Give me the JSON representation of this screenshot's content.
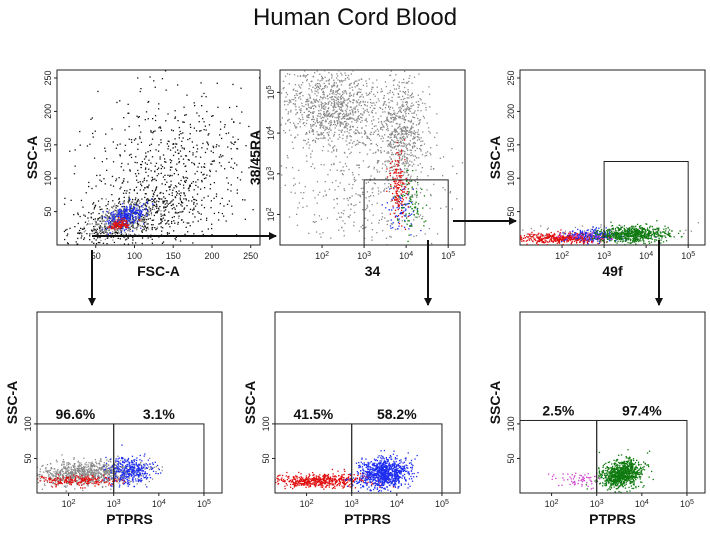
{
  "title": "Human Cord Blood",
  "colors": {
    "gray": "#8a8a8a",
    "black": "#111111",
    "red": "#e01010",
    "blue": "#1e2ef0",
    "green": "#0f7a0f",
    "magenta": "#d040d0",
    "arrow": "#111111"
  },
  "chart_data": [
    {
      "id": "p1",
      "type": "scatter",
      "xlabel": "FSC-A",
      "ylabel": "SSC-A",
      "xscale": "linear",
      "yscale": "linear",
      "xlim": [
        0,
        262
      ],
      "ylim": [
        0,
        262
      ],
      "xticks": [
        50,
        100,
        150,
        200,
        250
      ],
      "yticks": [
        50,
        100,
        150,
        200,
        250
      ],
      "xticklabels": [
        "50",
        "100",
        "150",
        "200",
        "250"
      ],
      "yticklabels": [
        "50",
        "100",
        "150",
        "200",
        "250"
      ],
      "series": [
        {
          "color": "black",
          "clusters": [
            {
              "cx": 95,
              "cy": 40,
              "sx": 40,
              "sy": 22,
              "n": 500,
              "rho": 0.55
            },
            {
              "cx": 140,
              "cy": 90,
              "sx": 55,
              "sy": 55,
              "n": 500,
              "rho": 0.2
            },
            {
              "cx": 160,
              "cy": 160,
              "sx": 60,
              "sy": 60,
              "n": 200,
              "rho": 0
            }
          ]
        },
        {
          "color": "gray",
          "clusters": [
            {
              "cx": 85,
              "cy": 38,
              "sx": 20,
              "sy": 12,
              "n": 350,
              "rho": 0.4
            }
          ]
        },
        {
          "color": "blue",
          "clusters": [
            {
              "cx": 90,
              "cy": 44,
              "sx": 13,
              "sy": 9,
              "n": 280,
              "rho": 0.4
            }
          ]
        },
        {
          "color": "red",
          "clusters": [
            {
              "cx": 80,
              "cy": 30,
              "sx": 7,
              "sy": 4,
              "n": 100,
              "rho": 0.3
            }
          ]
        }
      ],
      "gates": []
    },
    {
      "id": "p2",
      "type": "scatter",
      "xlabel": "34",
      "ylabel": "38/45RA",
      "xscale": "log",
      "yscale": "log",
      "xlim": [
        1,
        5.4
      ],
      "ylim": [
        1.25,
        5.55
      ],
      "xticks": [
        2,
        3,
        4,
        5
      ],
      "yticks": [
        2,
        3,
        4,
        5
      ],
      "xticklabels": [
        "10",
        "10",
        "10",
        "10"
      ],
      "xtickexps": [
        "2",
        "3",
        "4",
        "5"
      ],
      "yticklabels": [
        "10",
        "10",
        "10",
        "10"
      ],
      "ytickexps": [
        "2",
        "3",
        "4",
        "5"
      ],
      "series": [
        {
          "color": "gray",
          "clusters": [
            {
              "cx": 2.2,
              "cy": 4.6,
              "sx": 0.65,
              "sy": 0.5,
              "n": 1000,
              "rho": -0.1
            },
            {
              "cx": 3.9,
              "cy": 4.0,
              "sx": 0.3,
              "sy": 0.65,
              "n": 600,
              "rho": 0
            },
            {
              "cx": 3.0,
              "cy": 2.6,
              "sx": 1.0,
              "sy": 0.7,
              "n": 350,
              "rho": 0
            }
          ]
        },
        {
          "color": "blue",
          "clusters": [
            {
              "cx": 3.9,
              "cy": 2.1,
              "sx": 0.2,
              "sy": 0.35,
              "n": 70,
              "rho": 0
            }
          ]
        },
        {
          "color": "green",
          "clusters": [
            {
              "cx": 4.1,
              "cy": 2.2,
              "sx": 0.18,
              "sy": 0.35,
              "n": 80,
              "rho": 0
            }
          ]
        },
        {
          "color": "red",
          "clusters": [
            {
              "cx": 3.8,
              "cy": 2.7,
              "sx": 0.1,
              "sy": 0.45,
              "n": 150,
              "rho": 0
            }
          ]
        }
      ],
      "gates": [
        {
          "x0": 3.0,
          "x1": 5.0,
          "y0": 1.25,
          "y1": 2.85
        }
      ]
    },
    {
      "id": "p3",
      "type": "scatter",
      "xlabel": "49f",
      "ylabel": "SSC-A",
      "xscale": "log",
      "yscale": "linear",
      "xlim": [
        1,
        5.4
      ],
      "ylim": [
        0,
        262
      ],
      "xticks": [
        2,
        3,
        4,
        5
      ],
      "yticks": [
        50,
        100,
        150,
        200,
        250
      ],
      "xticklabels": [
        "10",
        "10",
        "10",
        "10"
      ],
      "xtickexps": [
        "2",
        "3",
        "4",
        "5"
      ],
      "yticklabels": [
        "50",
        "100",
        "150",
        "200",
        "250"
      ],
      "series": [
        {
          "color": "gray",
          "clusters": [
            {
              "cx": 3.0,
              "cy": 18,
              "sx": 1.2,
              "sy": 6,
              "n": 120,
              "rho": 0
            }
          ]
        },
        {
          "color": "red",
          "clusters": [
            {
              "cx": 2.0,
              "cy": 10,
              "sx": 0.55,
              "sy": 4,
              "n": 500,
              "rho": 0.2
            }
          ]
        },
        {
          "color": "blue",
          "clusters": [
            {
              "cx": 2.8,
              "cy": 14,
              "sx": 0.35,
              "sy": 5,
              "n": 200,
              "rho": 0
            }
          ]
        },
        {
          "color": "magenta",
          "clusters": [
            {
              "cx": 2.6,
              "cy": 12,
              "sx": 0.5,
              "sy": 4,
              "n": 40,
              "rho": 0
            }
          ]
        },
        {
          "color": "green",
          "clusters": [
            {
              "cx": 3.7,
              "cy": 16,
              "sx": 0.4,
              "sy": 6,
              "n": 650,
              "rho": 0.1
            }
          ]
        }
      ],
      "gates": [
        {
          "x0": 3.0,
          "x1": 5.0,
          "y0": 0,
          "y1": 125
        }
      ]
    },
    {
      "id": "p4",
      "type": "scatter",
      "xlabel": "PTPRS",
      "ylabel": "SSC-A",
      "xscale": "log",
      "yscale": "linear",
      "xlim": [
        1.3,
        5.4
      ],
      "ylim": [
        0,
        262
      ],
      "xticks": [
        2,
        3,
        4,
        5
      ],
      "yticks": [
        50,
        100
      ],
      "xticklabels": [
        "10",
        "10",
        "10",
        "10"
      ],
      "xtickexps": [
        "2",
        "3",
        "4",
        "5"
      ],
      "yticklabels": [
        "50",
        "100"
      ],
      "series": [
        {
          "color": "gray",
          "clusters": [
            {
              "cx": 2.4,
              "cy": 28,
              "sx": 0.6,
              "sy": 9,
              "n": 900,
              "rho": 0.15
            }
          ]
        },
        {
          "color": "blue",
          "clusters": [
            {
              "cx": 3.35,
              "cy": 32,
              "sx": 0.25,
              "sy": 10,
              "n": 350,
              "rho": 0
            }
          ]
        },
        {
          "color": "red",
          "clusters": [
            {
              "cx": 2.2,
              "cy": 18,
              "sx": 0.5,
              "sy": 4,
              "n": 220,
              "rho": 0
            }
          ]
        }
      ],
      "gates": [
        {
          "x0": 1.3,
          "x1": 3.0,
          "y0": 0,
          "y1": 100,
          "label": "96.6%"
        },
        {
          "x0": 3.0,
          "x1": 5.0,
          "y0": 0,
          "y1": 100,
          "label": "3.1%"
        }
      ]
    },
    {
      "id": "p5",
      "type": "scatter",
      "xlabel": "PTPRS",
      "ylabel": "SSC-A",
      "xscale": "log",
      "yscale": "linear",
      "xlim": [
        1.3,
        5.4
      ],
      "ylim": [
        0,
        262
      ],
      "xticks": [
        2,
        3,
        4,
        5
      ],
      "yticks": [
        50,
        100
      ],
      "xticklabels": [
        "10",
        "10",
        "10",
        "10"
      ],
      "xtickexps": [
        "2",
        "3",
        "4",
        "5"
      ],
      "yticklabels": [
        "50",
        "100"
      ],
      "series": [
        {
          "color": "red",
          "clusters": [
            {
              "cx": 2.3,
              "cy": 18,
              "sx": 0.55,
              "sy": 5,
              "n": 550,
              "rho": 0.1
            }
          ]
        },
        {
          "color": "blue",
          "clusters": [
            {
              "cx": 3.7,
              "cy": 28,
              "sx": 0.28,
              "sy": 11,
              "n": 900,
              "rho": 0.2
            }
          ]
        }
      ],
      "gates": [
        {
          "x0": 1.3,
          "x1": 3.0,
          "y0": 0,
          "y1": 100,
          "label": "41.5%"
        },
        {
          "x0": 3.0,
          "x1": 5.0,
          "y0": 0,
          "y1": 100,
          "label": "58.2%"
        }
      ]
    },
    {
      "id": "p6",
      "type": "scatter",
      "xlabel": "PTPRS",
      "ylabel": "SSC-A",
      "xscale": "log",
      "yscale": "linear",
      "xlim": [
        1.3,
        5.4
      ],
      "ylim": [
        0,
        262
      ],
      "xticks": [
        2,
        3,
        4,
        5
      ],
      "yticks": [
        50,
        100
      ],
      "xticklabels": [
        "10",
        "10",
        "10",
        "10"
      ],
      "xtickexps": [
        "2",
        "3",
        "4",
        "5"
      ],
      "yticklabels": [
        "50",
        "100"
      ],
      "series": [
        {
          "color": "magenta",
          "clusters": [
            {
              "cx": 2.6,
              "cy": 20,
              "sx": 0.35,
              "sy": 6,
              "n": 70,
              "rho": 0
            }
          ]
        },
        {
          "color": "green",
          "clusters": [
            {
              "cx": 3.55,
              "cy": 28,
              "sx": 0.22,
              "sy": 10,
              "n": 900,
              "rho": 0.2
            }
          ]
        }
      ],
      "gates": [
        {
          "x0": 1.3,
          "x1": 3.0,
          "y0": 0,
          "y1": 105,
          "label": "2.5%"
        },
        {
          "x0": 3.0,
          "x1": 5.0,
          "y0": 0,
          "y1": 105,
          "label": "97.4%"
        }
      ]
    }
  ]
}
